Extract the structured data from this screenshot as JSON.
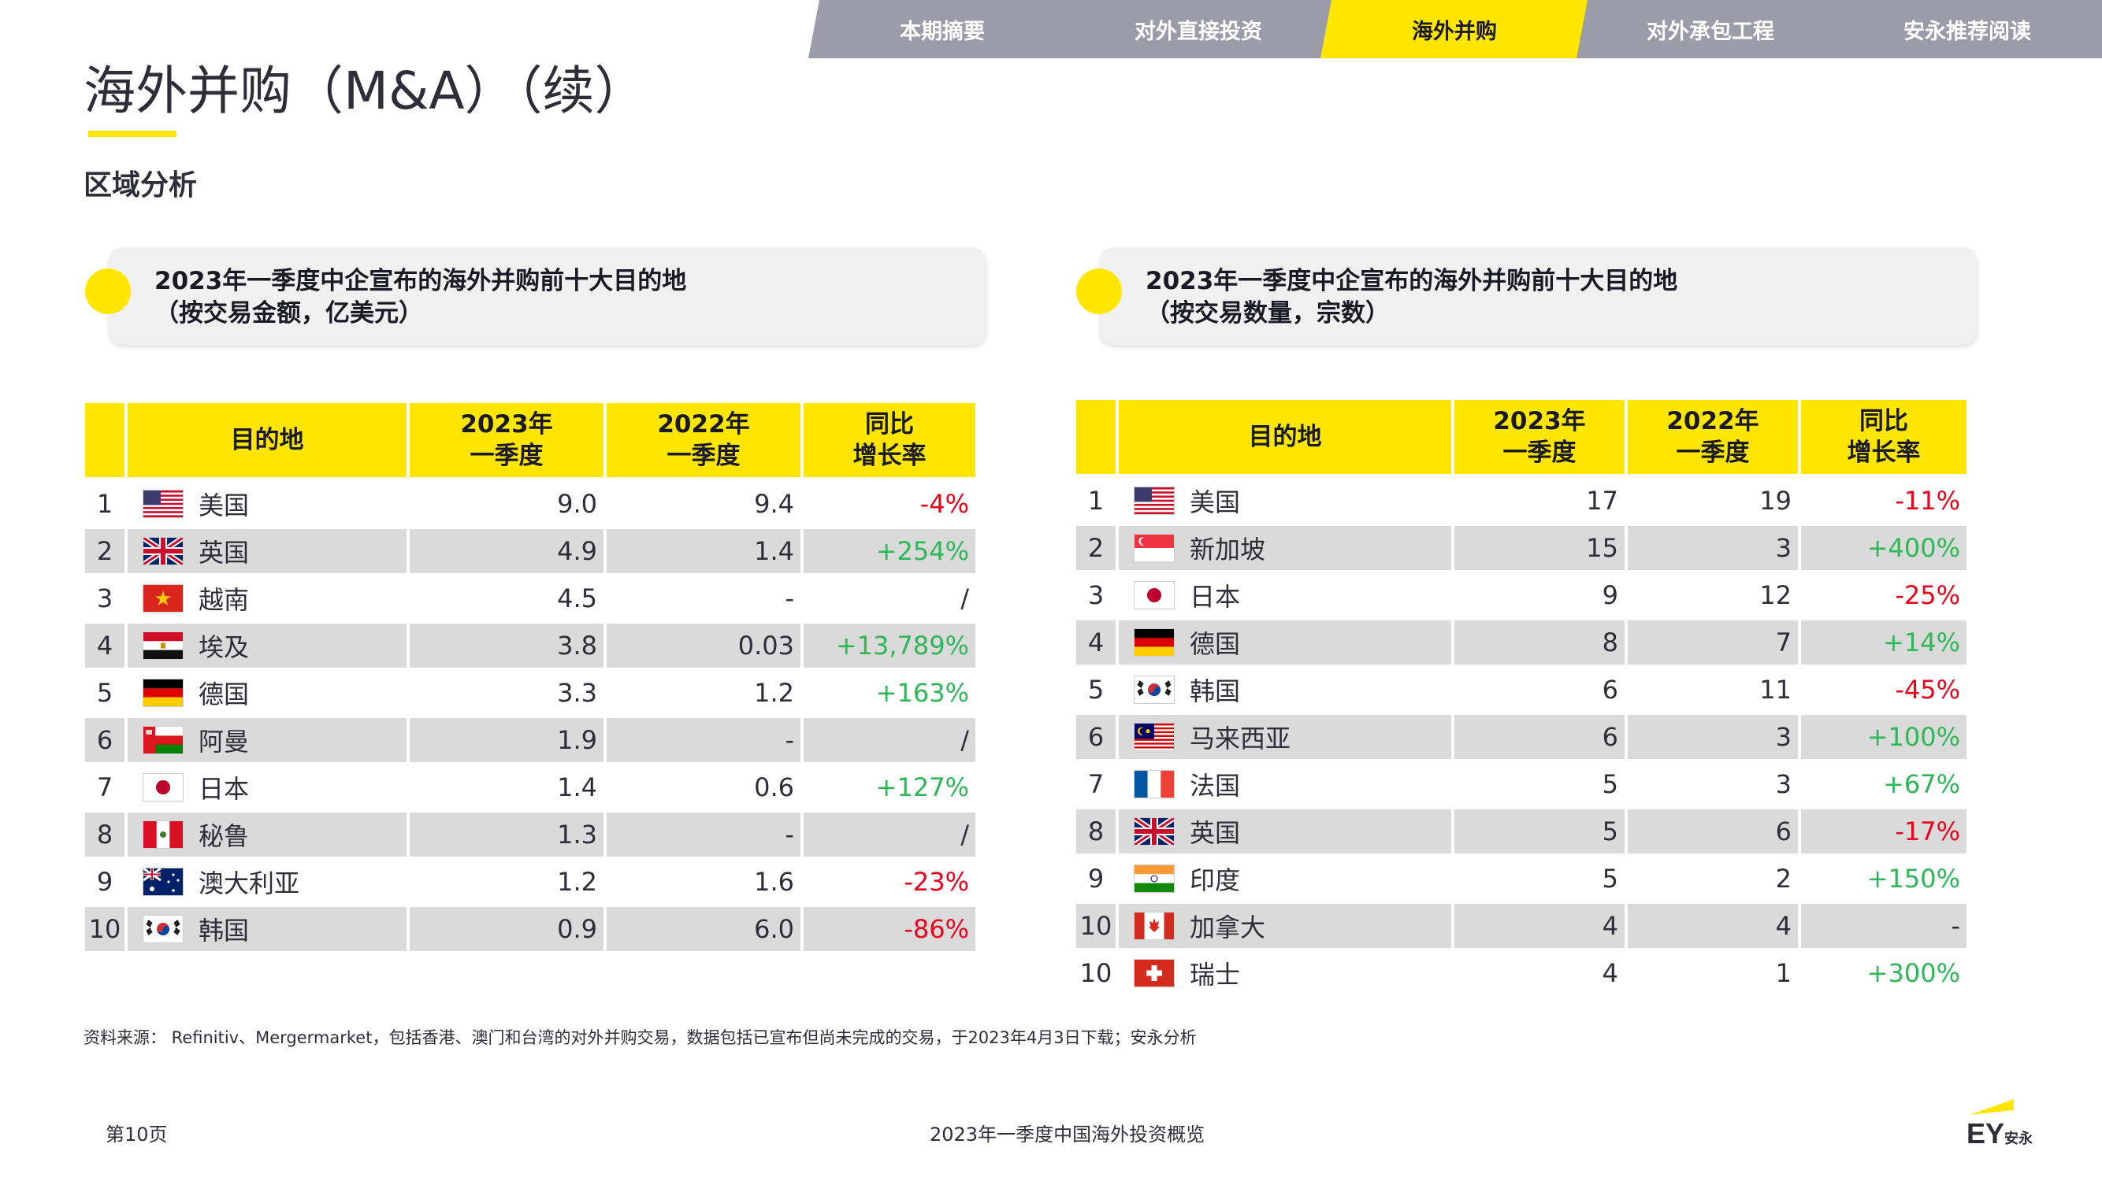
{
  "nav": {
    "tabs": [
      {
        "label": "本期摘要",
        "active": false
      },
      {
        "label": "对外直接投资",
        "active": false
      },
      {
        "label": "海外并购",
        "active": true
      },
      {
        "label": "对外承包工程",
        "active": false
      },
      {
        "label": "安永推荐阅读",
        "active": false
      }
    ]
  },
  "page": {
    "title": "海外并购（M&A）（续）",
    "section_title": "区域分析"
  },
  "left_card": {
    "line1": "2023年一季度中企宣布的海外并购前十大目的地",
    "line2": "（按交易金额，亿美元）"
  },
  "right_card": {
    "line1": "2023年一季度中企宣布的海外并购前十大目的地",
    "line2": "（按交易数量，宗数）"
  },
  "left_table": {
    "headers": [
      "目的地",
      "2023年\n一季度",
      "2022年\n一季度",
      "同比\n增长率"
    ],
    "rows": [
      {
        "rank": "1",
        "flag": "us-flag-icon",
        "dest": "美国",
        "v2023": "9.0",
        "v2022": "9.4",
        "growth": "-4%",
        "trend": "down"
      },
      {
        "rank": "2",
        "flag": "uk-flag-icon",
        "dest": "英国",
        "v2023": "4.9",
        "v2022": "1.4",
        "growth": "+254%",
        "trend": "up"
      },
      {
        "rank": "3",
        "flag": "vietnam-flag-icon",
        "dest": "越南",
        "v2023": "4.5",
        "v2022": "-",
        "growth": "/",
        "trend": "none"
      },
      {
        "rank": "4",
        "flag": "egypt-flag-icon",
        "dest": "埃及",
        "v2023": "3.8",
        "v2022": "0.03",
        "growth": "+13,789%",
        "trend": "up"
      },
      {
        "rank": "5",
        "flag": "germany-flag-icon",
        "dest": "德国",
        "v2023": "3.3",
        "v2022": "1.2",
        "growth": "+163%",
        "trend": "up"
      },
      {
        "rank": "6",
        "flag": "oman-flag-icon",
        "dest": "阿曼",
        "v2023": "1.9",
        "v2022": "-",
        "growth": "/",
        "trend": "none"
      },
      {
        "rank": "7",
        "flag": "japan-flag-icon",
        "dest": "日本",
        "v2023": "1.4",
        "v2022": "0.6",
        "growth": "+127%",
        "trend": "up"
      },
      {
        "rank": "8",
        "flag": "peru-flag-icon",
        "dest": "秘鲁",
        "v2023": "1.3",
        "v2022": "-",
        "growth": "/",
        "trend": "none"
      },
      {
        "rank": "9",
        "flag": "australia-flag-icon",
        "dest": "澳大利亚",
        "v2023": "1.2",
        "v2022": "1.6",
        "growth": "-23%",
        "trend": "down"
      },
      {
        "rank": "10",
        "flag": "korea-flag-icon",
        "dest": "韩国",
        "v2023": "0.9",
        "v2022": "6.0",
        "growth": "-86%",
        "trend": "down"
      }
    ]
  },
  "right_table": {
    "headers": [
      "目的地",
      "2023年\n一季度",
      "2022年\n一季度",
      "同比\n增长率"
    ],
    "rows": [
      {
        "rank": "1",
        "flag": "us-flag-icon",
        "dest": "美国",
        "v2023": "17",
        "v2022": "19",
        "growth": "-11%",
        "trend": "down"
      },
      {
        "rank": "2",
        "flag": "singapore-flag-icon",
        "dest": "新加坡",
        "v2023": "15",
        "v2022": "3",
        "growth": "+400%",
        "trend": "up"
      },
      {
        "rank": "3",
        "flag": "japan-flag-icon",
        "dest": "日本",
        "v2023": "9",
        "v2022": "12",
        "growth": "-25%",
        "trend": "down"
      },
      {
        "rank": "4",
        "flag": "germany-flag-icon",
        "dest": "德国",
        "v2023": "8",
        "v2022": "7",
        "growth": "+14%",
        "trend": "up"
      },
      {
        "rank": "5",
        "flag": "korea-flag-icon",
        "dest": "韩国",
        "v2023": "6",
        "v2022": "11",
        "growth": "-45%",
        "trend": "down"
      },
      {
        "rank": "6",
        "flag": "malaysia-flag-icon",
        "dest": "马来西亚",
        "v2023": "6",
        "v2022": "3",
        "growth": "+100%",
        "trend": "up"
      },
      {
        "rank": "7",
        "flag": "france-flag-icon",
        "dest": "法国",
        "v2023": "5",
        "v2022": "3",
        "growth": "+67%",
        "trend": "up"
      },
      {
        "rank": "8",
        "flag": "uk-flag-icon",
        "dest": "英国",
        "v2023": "5",
        "v2022": "6",
        "growth": "-17%",
        "trend": "down"
      },
      {
        "rank": "9",
        "flag": "india-flag-icon",
        "dest": "印度",
        "v2023": "5",
        "v2022": "2",
        "growth": "+150%",
        "trend": "up"
      },
      {
        "rank": "10",
        "flag": "canada-flag-icon",
        "dest": "加拿大",
        "v2023": "4",
        "v2022": "4",
        "growth": "-",
        "trend": "none"
      },
      {
        "rank": "10",
        "flag": "switzerland-flag-icon",
        "dest": "瑞士",
        "v2023": "4",
        "v2022": "1",
        "growth": "+300%",
        "trend": "up"
      }
    ]
  },
  "colors": {
    "accent": "#ffe600",
    "tab_gray": "#9c9ca8",
    "positive": "#2db757",
    "negative": "#ea011b",
    "shade": "#dadada"
  },
  "source_note": "资料来源：  Refinitiv、Mergermarket，包括香港、澳门和台湾的对外并购交易，数据包括已宣布但尚未完成的交易，于2023年4月3日下载；安永分析",
  "footer": {
    "page_number": "第10页",
    "report_title": "2023年一季度中国海外投资概览"
  },
  "logo": {
    "text": "EY",
    "subtext": "安永"
  }
}
